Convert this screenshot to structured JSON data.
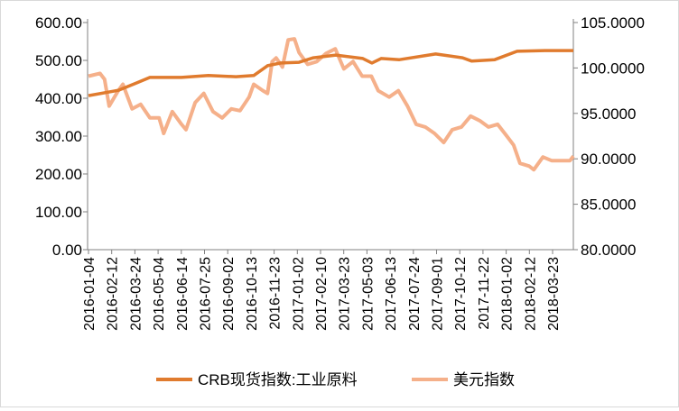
{
  "chart_data": {
    "type": "line",
    "title": "",
    "x_unit": "days since 2016-01-04",
    "x_tick_labels": [
      "2016-01-04",
      "2016-02-12",
      "2016-03-24",
      "2016-05-04",
      "2016-06-14",
      "2016-07-25",
      "2016-09-02",
      "2016-10-13",
      "2016-11-23",
      "2017-01-02",
      "2017-02-10",
      "2017-03-23",
      "2017-05-03",
      "2017-06-13",
      "2017-07-24",
      "2017-09-01",
      "2017-10-12",
      "2017-11-22",
      "2018-01-02",
      "2018-02-12",
      "2018-03-23"
    ],
    "y_left": {
      "ylim": [
        0,
        600
      ],
      "ticks": [
        "0.00",
        "100.00",
        "200.00",
        "300.00",
        "400.00",
        "500.00",
        "600.00"
      ]
    },
    "y_right": {
      "ylim": [
        80,
        105
      ],
      "ticks": [
        "80.0000",
        "85.0000",
        "90.0000",
        "95.0000",
        "100.0000",
        "105.0000"
      ]
    },
    "legend_position": "bottom",
    "series": [
      {
        "name": "CRB现货指数:工业原料",
        "axis": "left",
        "color": "#E07B2E",
        "x": [
          0,
          52,
          83,
          107,
          162,
          209,
          257,
          288,
          312,
          335,
          367,
          392,
          431,
          478,
          494,
          510,
          542,
          605,
          652,
          668,
          708,
          747,
          795,
          845
        ],
        "values": [
          407,
          421,
          440,
          455,
          455,
          460,
          457,
          460,
          486,
          493,
          495,
          507,
          514,
          505,
          493,
          505,
          502,
          517,
          507,
          498,
          502,
          524,
          526,
          526
        ]
      },
      {
        "name": "美元指数",
        "axis": "right",
        "color": "#F5B08A",
        "x": [
          0,
          20,
          28,
          36,
          52,
          60,
          76,
          91,
          107,
          123,
          131,
          146,
          162,
          170,
          186,
          201,
          217,
          233,
          249,
          264,
          280,
          288,
          304,
          312,
          320,
          327,
          338,
          348,
          359,
          367,
          382,
          398,
          414,
          430,
          445,
          461,
          477,
          493,
          505,
          524,
          540,
          556,
          571,
          587,
          603,
          619,
          634,
          650,
          666,
          682,
          697,
          713,
          729,
          741,
          752,
          768,
          776,
          792,
          807,
          823,
          839,
          845
        ],
        "values": [
          99.1,
          99.4,
          98.75,
          95.8,
          97.5,
          98.2,
          95.5,
          96.0,
          94.5,
          94.5,
          92.8,
          95.2,
          93.8,
          93.2,
          96.2,
          97.2,
          95.2,
          94.5,
          95.5,
          95.3,
          96.8,
          98.2,
          97.5,
          97.2,
          100.7,
          101.1,
          100.1,
          103.1,
          103.2,
          101.7,
          100.4,
          100.7,
          101.6,
          102.1,
          99.9,
          100.7,
          99.1,
          99.1,
          97.5,
          96.8,
          97.5,
          95.8,
          93.8,
          93.5,
          92.8,
          91.8,
          93.2,
          93.5,
          94.7,
          94.2,
          93.5,
          93.8,
          92.5,
          91.5,
          89.5,
          89.2,
          88.8,
          90.2,
          89.8,
          89.8,
          89.8,
          90.3
        ]
      }
    ]
  }
}
